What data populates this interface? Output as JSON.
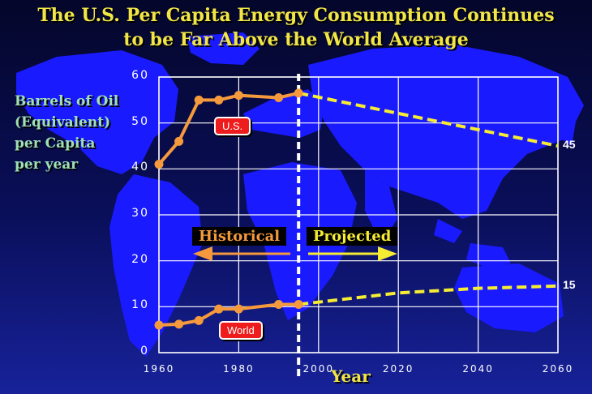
{
  "title_line1": "The U.S. Per Capita Energy Consumption Continues",
  "title_line2": "to be Far Above the World Average",
  "ylabel_lines": [
    "Barrels of Oil",
    "(Equivalent)",
    "per Capita",
    "per year"
  ],
  "xlabel": "Year",
  "period_labels": {
    "historical": "Historical",
    "projected": "Projected"
  },
  "colors": {
    "historical": "#f59a3c",
    "projected": "#f5ec33",
    "us_tag": "#ee1c1c",
    "grid": "#ffffff",
    "land": "#1a1aff"
  },
  "icons": [
    "left-arrow-icon",
    "right-arrow-icon",
    "world-map-background"
  ],
  "chart_data": {
    "type": "line",
    "xlim": [
      1960,
      2060
    ],
    "ylim": [
      0,
      60
    ],
    "x_ticks": [
      "1960",
      "1980",
      "2000",
      "2020",
      "2040",
      "2060"
    ],
    "y_ticks": [
      "0",
      "10",
      "20",
      "30",
      "40",
      "50",
      "60"
    ],
    "divider_year": 1995,
    "grid": true,
    "series": [
      {
        "name": "U.S.",
        "historical": [
          [
            1960,
            41
          ],
          [
            1965,
            46
          ],
          [
            1970,
            55
          ],
          [
            1975,
            55
          ],
          [
            1980,
            56
          ],
          [
            1990,
            55.5
          ],
          [
            1995,
            56.5
          ]
        ],
        "projected": [
          [
            1995,
            56.5
          ],
          [
            2060,
            45
          ]
        ],
        "end_label": "45"
      },
      {
        "name": "World",
        "historical": [
          [
            1960,
            6
          ],
          [
            1965,
            6.2
          ],
          [
            1970,
            7
          ],
          [
            1975,
            9.5
          ],
          [
            1980,
            9.5
          ],
          [
            1990,
            10.5
          ],
          [
            1995,
            10.5
          ]
        ],
        "projected": [
          [
            1995,
            10.5
          ],
          [
            2020,
            13
          ],
          [
            2040,
            14
          ],
          [
            2060,
            14.5
          ]
        ],
        "end_label": "15"
      }
    ]
  }
}
